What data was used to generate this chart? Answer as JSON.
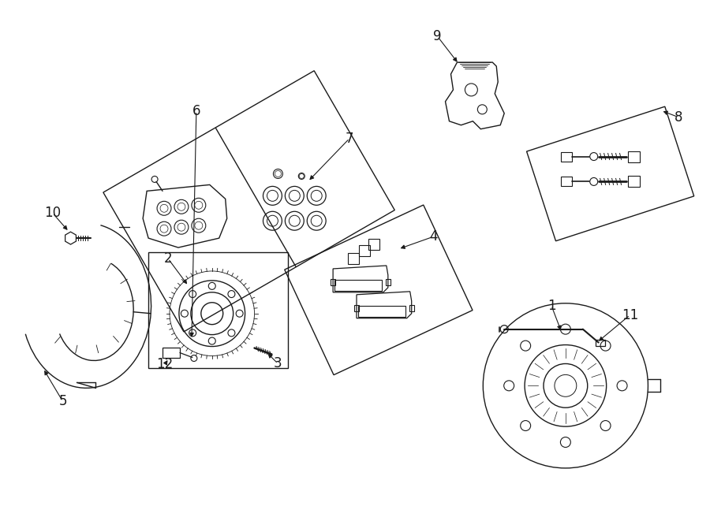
{
  "bg_color": "#ffffff",
  "line_color": "#1a1a1a",
  "figsize": [
    9.0,
    6.61
  ],
  "dpi": 100,
  "lw": 1.0
}
